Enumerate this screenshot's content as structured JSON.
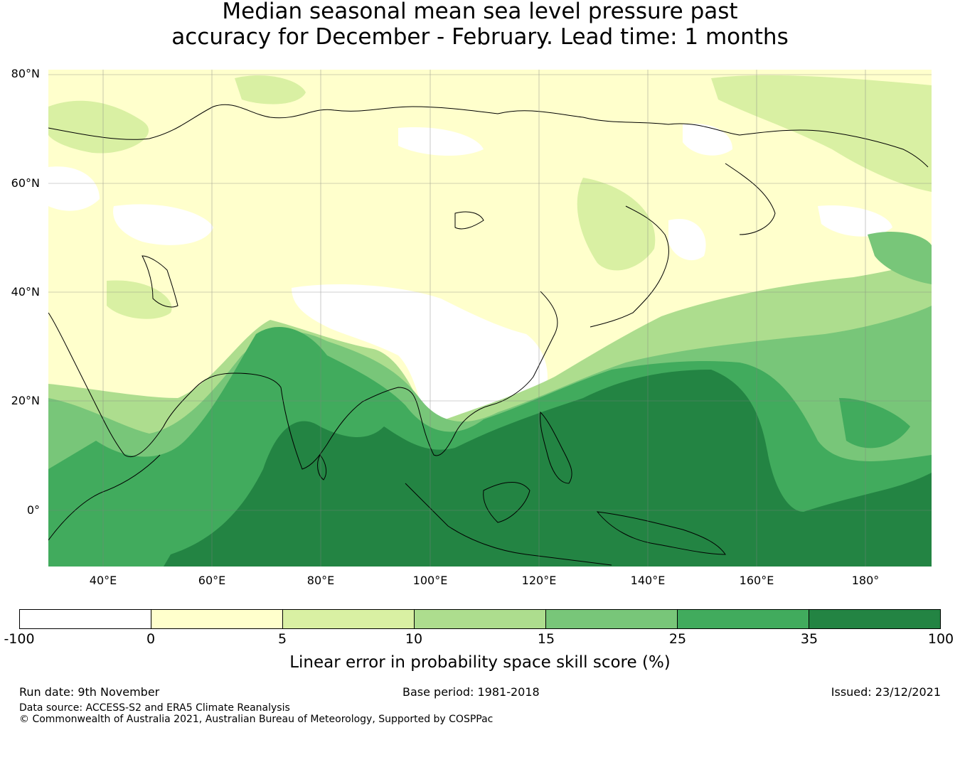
{
  "title": {
    "line1": "Median seasonal mean sea level pressure past",
    "line2": "accuracy for December - February. Lead time: 1 months"
  },
  "map": {
    "latitude_labels": [
      "80°N",
      "60°N",
      "40°N",
      "20°N",
      "0°"
    ],
    "longitude_labels": [
      "40°E",
      "60°E",
      "80°E",
      "100°E",
      "120°E",
      "140°E",
      "160°E",
      "180°"
    ],
    "region_descriptions": []
  },
  "colorbar": {
    "label": "Linear error in probability space skill score (%)",
    "ticks": [
      "-100",
      "0",
      "5",
      "10",
      "15",
      "25",
      "35",
      "100"
    ],
    "colors": [
      "#ffffff",
      "#ffffcc",
      "#d9f0a3",
      "#addd8e",
      "#78c679",
      "#41ab5d",
      "#238443"
    ]
  },
  "footer": {
    "run_date": "Run date: 9th November",
    "base_period": "Base period: 1981-2018",
    "issued": "Issued: 23/12/2021",
    "data_source": "Data source: ACCESS-S2 and ERA5 Climate Reanalysis",
    "copyright": "© Commonwealth of Australia 2021, Australian Bureau of Meteorology, Supported by COSPPac"
  }
}
